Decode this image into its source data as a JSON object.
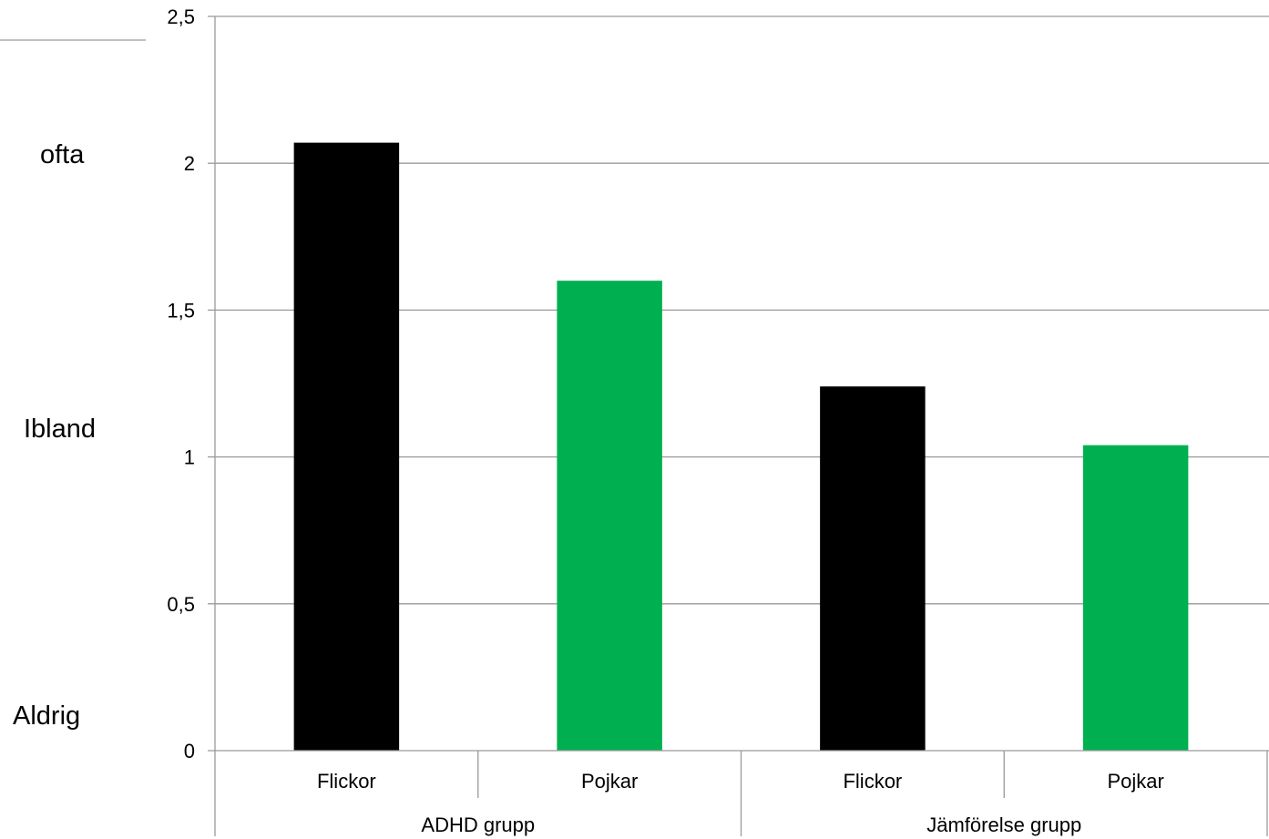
{
  "chart_data": {
    "type": "bar",
    "groups": [
      {
        "label": "ADHD grupp",
        "categories": [
          "Flickor",
          "Pojkar"
        ]
      },
      {
        "label": "Jämförelse grupp",
        "categories": [
          "Flickor",
          "Pojkar"
        ]
      }
    ],
    "categories": [
      "Flickor",
      "Pojkar",
      "Flickor",
      "Pojkar"
    ],
    "values": [
      2.07,
      1.6,
      1.24,
      1.04
    ],
    "bar_colors": [
      "#000000",
      "#00b050",
      "#000000",
      "#00b050"
    ],
    "ylim": [
      0,
      2.5
    ],
    "yticks": [
      0,
      0.5,
      1,
      1.5,
      2,
      2.5
    ],
    "ytick_labels": [
      "0",
      "0,5",
      "1",
      "1,5",
      "2",
      "2,5"
    ],
    "side_labels": [
      {
        "text": "ofta",
        "value": 2
      },
      {
        "text": "Ibland",
        "value": 1
      },
      {
        "text": "Aldrig",
        "value": 0
      }
    ],
    "grid": true,
    "title": "",
    "xlabel": "",
    "ylabel": ""
  }
}
